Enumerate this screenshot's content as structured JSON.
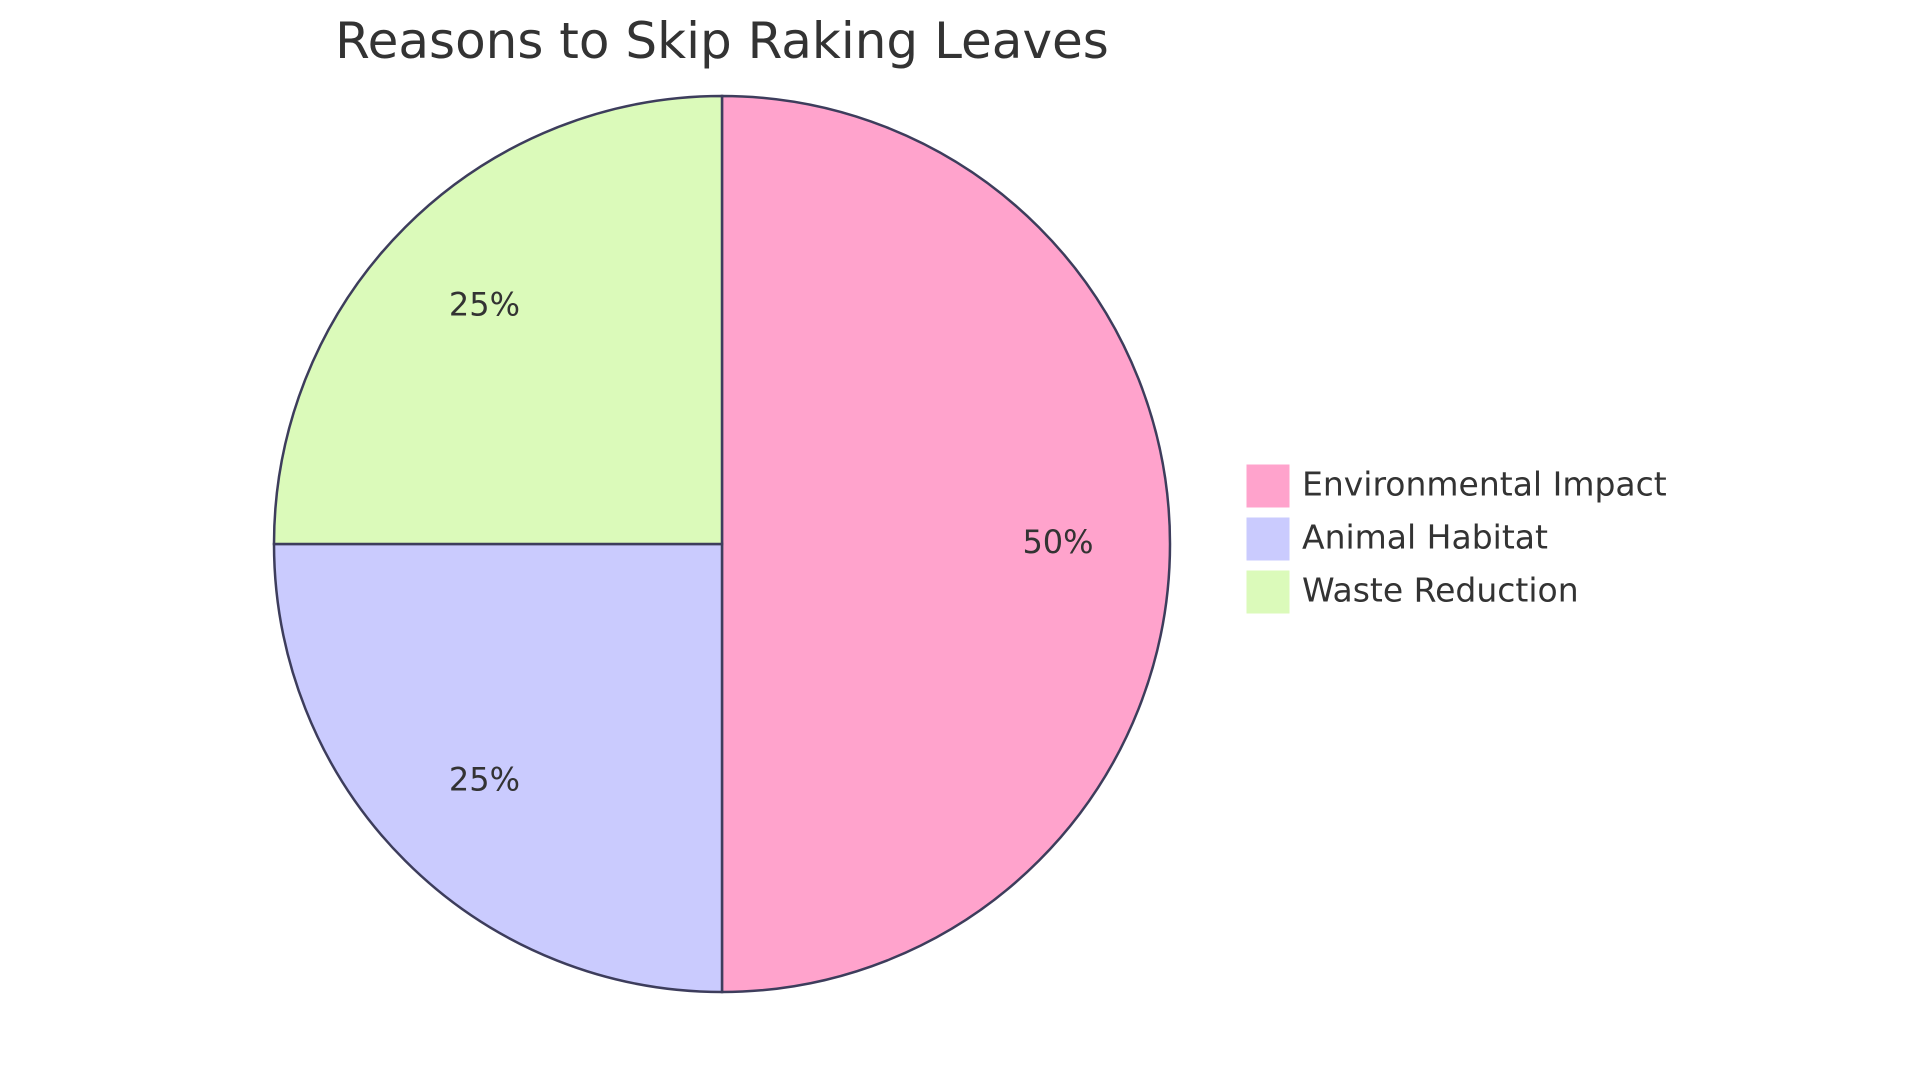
{
  "chart_data": {
    "type": "pie",
    "title": "Reasons to Skip Raking Leaves",
    "categories": [
      "Environmental Impact",
      "Animal Habitat",
      "Waste Reduction"
    ],
    "values": [
      50,
      25,
      25
    ],
    "value_labels": [
      "50%",
      "25%",
      "25%"
    ],
    "colors": [
      "#FFA3CC",
      "#CACBFE",
      "#DBFABA"
    ],
    "stroke_color": "#3D3D5C",
    "legend_position": "right"
  }
}
